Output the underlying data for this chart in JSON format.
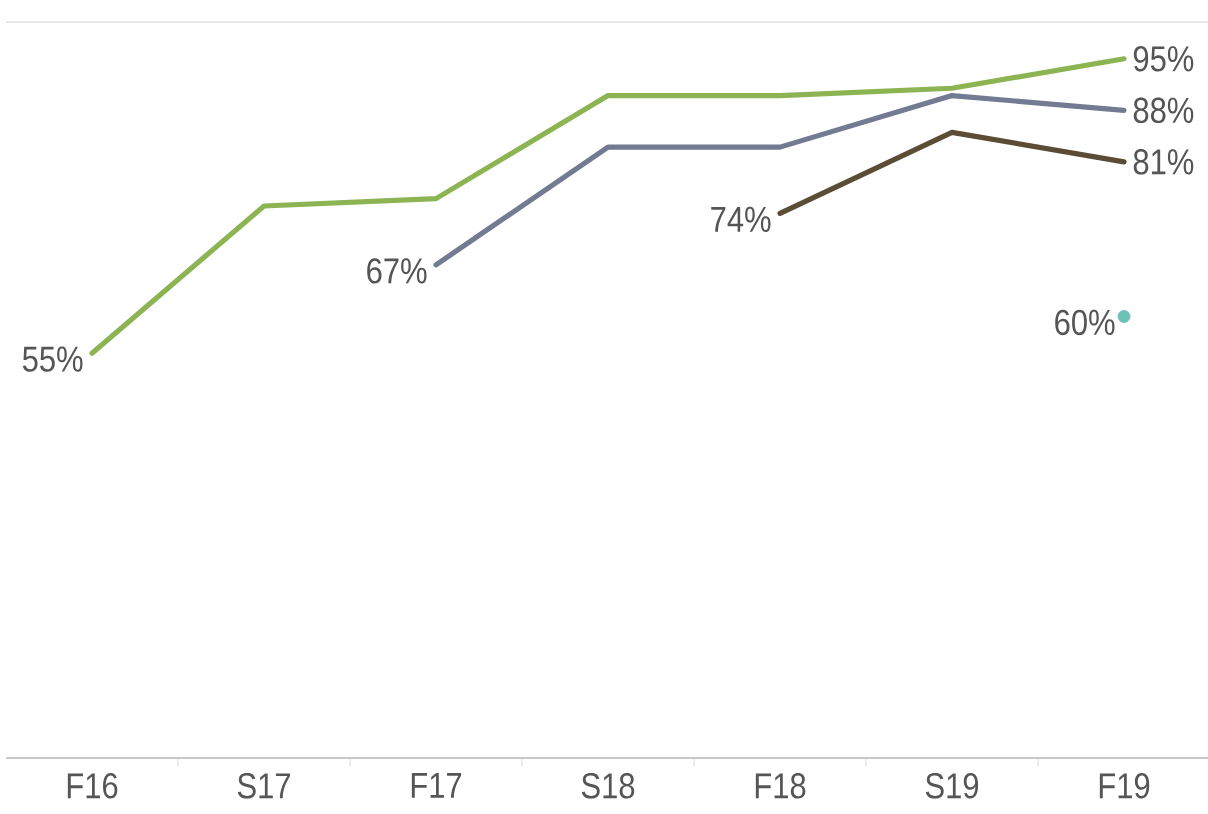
{
  "chart_data": {
    "type": "line",
    "categories": [
      "F16",
      "S17",
      "F17",
      "S18",
      "F18",
      "S19",
      "F19"
    ],
    "ylim": [
      0,
      100
    ],
    "tick_labels": "x",
    "series": [
      {
        "color": "#8cb453",
        "values": [
          55,
          75,
          76,
          90,
          90,
          91,
          95
        ],
        "value_labels": [
          "55%",
          null,
          null,
          null,
          null,
          null,
          "95%"
        ]
      },
      {
        "color": "#737b92",
        "values": [
          null,
          null,
          67,
          83,
          83,
          90,
          88
        ],
        "value_labels": [
          null,
          null,
          "67%",
          null,
          null,
          null,
          "88%"
        ]
      },
      {
        "color": "#5b4c35",
        "values": [
          null,
          null,
          null,
          null,
          74,
          85,
          81
        ],
        "value_labels": [
          null,
          null,
          null,
          null,
          "74%",
          null,
          "81%"
        ]
      },
      {
        "type": "scatter",
        "color": "#6cc0b8",
        "values": [
          null,
          null,
          null,
          null,
          null,
          null,
          60
        ],
        "value_labels": [
          null,
          null,
          null,
          null,
          null,
          null,
          "60%"
        ]
      }
    ]
  }
}
